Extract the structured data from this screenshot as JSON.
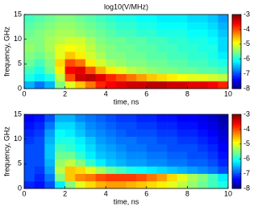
{
  "chart_data": [
    {
      "type": "heatmap",
      "title": "log10(V/MHz)",
      "xlabel": "time, ns",
      "ylabel": "frequency, GHz",
      "xlim": [
        0,
        10
      ],
      "xticks": [
        0,
        2,
        4,
        6,
        8,
        10
      ],
      "ylim": [
        0,
        15
      ],
      "yticks": [
        0,
        5,
        10,
        15
      ],
      "clim": [
        -8,
        -3
      ],
      "cticks": [
        -8,
        -7,
        -6,
        -5,
        -4,
        -3
      ],
      "colormap": "jet",
      "x": [
        0.25,
        0.75,
        1.25,
        1.75,
        2.25,
        2.75,
        3.25,
        3.75,
        4.25,
        4.75,
        5.25,
        5.75,
        6.25,
        6.75,
        7.25,
        7.75,
        8.25,
        8.75,
        9.25,
        9.75
      ],
      "y": [
        0.75,
        2.25,
        3.75,
        5.25,
        6.75,
        8.25,
        9.75,
        11.25,
        12.75,
        14.25
      ],
      "values": [
        [
          -6.5,
          -6.8,
          -6.5,
          -5.5,
          -5,
          -4.6,
          -4.2,
          -3.8,
          -3.6,
          -3.5,
          -3.4,
          -3.4,
          -3.3,
          -3.3,
          -3.4,
          -3.4,
          -3.5,
          -3.5,
          -3.6,
          -3.8
        ],
        [
          -6,
          -6.2,
          -6,
          -5.2,
          -4,
          -3.4,
          -3.3,
          -3.5,
          -3.8,
          -4,
          -4.2,
          -4.4,
          -4.6,
          -4.7,
          -4.8,
          -4.9,
          -5,
          -5,
          -5.1,
          -5.2
        ],
        [
          -5.8,
          -6,
          -5.6,
          -4.8,
          -3.6,
          -3.5,
          -4,
          -4.5,
          -4.8,
          -5,
          -5.2,
          -5.3,
          -5.4,
          -5.5,
          -5.5,
          -5.6,
          -5.6,
          -5.7,
          -5.7,
          -5.8
        ],
        [
          -5.6,
          -5.8,
          -5.5,
          -4.7,
          -4,
          -4.2,
          -4.8,
          -5.1,
          -5.3,
          -5.4,
          -5.5,
          -5.5,
          -5.6,
          -5.6,
          -5.7,
          -5.7,
          -5.8,
          -5.8,
          -5.9,
          -6
        ],
        [
          -5.5,
          -5.6,
          -5.4,
          -5,
          -4.6,
          -4.8,
          -5.1,
          -5.3,
          -5.5,
          -5.5,
          -5.6,
          -5.6,
          -5.7,
          -5.7,
          -5.8,
          -5.8,
          -5.9,
          -5.9,
          -6,
          -6.2
        ],
        [
          -5.4,
          -5.5,
          -5.3,
          -5,
          -4.9,
          -5,
          -5.2,
          -5.4,
          -5.5,
          -5.6,
          -5.6,
          -5.7,
          -5.7,
          -5.8,
          -5.8,
          -5.9,
          -5.9,
          -6,
          -6,
          -6.3
        ],
        [
          -5.5,
          -5.5,
          -5.3,
          -5.2,
          -5.1,
          -5.1,
          -5.3,
          -5.5,
          -5.6,
          -5.6,
          -5.7,
          -5.7,
          -5.8,
          -5.8,
          -5.9,
          -5.9,
          -6,
          -6,
          -6.1,
          -6.3
        ],
        [
          -5.6,
          -5.5,
          -5.4,
          -5.3,
          -5.3,
          -5.4,
          -5.5,
          -5.6,
          -5.7,
          -5.8,
          -5.8,
          -5.9,
          -5.9,
          -6,
          -6,
          -6,
          -6.1,
          -6.1,
          -6.2,
          -6.4
        ],
        [
          -5.7,
          -5.6,
          -5.5,
          -5.4,
          -5.4,
          -5.5,
          -5.6,
          -5.7,
          -5.8,
          -5.9,
          -5.9,
          -6,
          -6,
          -6.1,
          -6.1,
          -6.1,
          -6.2,
          -6.2,
          -6.3,
          -6.5
        ],
        [
          -5.8,
          -5.7,
          -5.6,
          -5.5,
          -5.5,
          -5.6,
          -5.7,
          -5.8,
          -5.9,
          -6,
          -6,
          -6.1,
          -6.1,
          -6.2,
          -6.2,
          -6.2,
          -6.3,
          -6.3,
          -6.4,
          -6.6
        ]
      ]
    },
    {
      "type": "heatmap",
      "xlabel": "time, ns",
      "ylabel": "frequency, GHz",
      "xlim": [
        0,
        10
      ],
      "xticks": [
        0,
        2,
        4,
        6,
        8,
        10
      ],
      "ylim": [
        0,
        15
      ],
      "yticks": [
        0,
        5,
        10,
        15
      ],
      "clim": [
        -8,
        -3
      ],
      "cticks": [
        -8,
        -7,
        -6,
        -5,
        -4,
        -3
      ],
      "colormap": "jet",
      "x": [
        0.25,
        0.75,
        1.25,
        1.75,
        2.25,
        2.75,
        3.25,
        3.75,
        4.25,
        4.75,
        5.25,
        5.75,
        6.25,
        6.75,
        7.25,
        7.75,
        8.25,
        8.75,
        9.25,
        9.75
      ],
      "y": [
        0.75,
        2.25,
        3.75,
        5.25,
        6.75,
        8.25,
        9.75,
        11.25,
        12.75,
        14.25
      ],
      "values": [
        [
          -7.2,
          -7.3,
          -7,
          -6.2,
          -5.5,
          -5,
          -4.7,
          -4.5,
          -4.4,
          -4.4,
          -4.5,
          -4.6,
          -4.7,
          -4.8,
          -5,
          -5.2,
          -5.4,
          -5.6,
          -5.8,
          -6
        ],
        [
          -7,
          -7.2,
          -6.8,
          -5.5,
          -4.6,
          -4.3,
          -4.2,
          -4,
          -3.9,
          -3.9,
          -3.9,
          -4,
          -4.2,
          -4.4,
          -4.7,
          -5,
          -5.3,
          -5.5,
          -5.8,
          -6.2
        ],
        [
          -7,
          -7.1,
          -6.6,
          -5.2,
          -4.6,
          -4.7,
          -5,
          -5.3,
          -5.6,
          -5.8,
          -6,
          -6.1,
          -6.2,
          -6.3,
          -6.4,
          -6.5,
          -6.6,
          -6.7,
          -6.8,
          -7
        ],
        [
          -7,
          -7,
          -6.5,
          -5.4,
          -5.2,
          -5.5,
          -5.9,
          -6.2,
          -6.4,
          -6.5,
          -6.6,
          -6.6,
          -6.7,
          -6.7,
          -6.8,
          -6.8,
          -6.9,
          -6.9,
          -7,
          -7.2
        ],
        [
          -7,
          -7,
          -6.4,
          -5.6,
          -5.6,
          -5.9,
          -6.2,
          -6.4,
          -6.5,
          -6.6,
          -6.7,
          -6.7,
          -6.8,
          -6.8,
          -6.9,
          -6.9,
          -7,
          -7,
          -7.1,
          -7.3
        ],
        [
          -7,
          -7,
          -6.4,
          -5.8,
          -5.9,
          -6.1,
          -6.3,
          -6.5,
          -6.6,
          -6.7,
          -6.8,
          -6.8,
          -6.9,
          -6.9,
          -7,
          -7,
          -7,
          -7.1,
          -7.2,
          -7.4
        ],
        [
          -7.1,
          -7,
          -6.5,
          -6,
          -6,
          -6.2,
          -6.4,
          -6.6,
          -6.7,
          -6.8,
          -6.8,
          -6.9,
          -6.9,
          -7,
          -7,
          -7.1,
          -7.1,
          -7.2,
          -7.3,
          -7.5
        ],
        [
          -7.2,
          -7.1,
          -6.6,
          -6.1,
          -6.2,
          -6.4,
          -6.6,
          -6.7,
          -6.8,
          -6.9,
          -7,
          -7,
          -7,
          -7.1,
          -7.1,
          -7.2,
          -7.2,
          -7.3,
          -7.4,
          -7.6
        ],
        [
          -7.3,
          -7.2,
          -6.8,
          -6.3,
          -6.3,
          -6.5,
          -6.7,
          -6.8,
          -6.9,
          -7,
          -7,
          -7.1,
          -7.1,
          -7.2,
          -7.2,
          -7.3,
          -7.3,
          -7.4,
          -7.5,
          -7.7
        ],
        [
          -7.4,
          -7.3,
          -7,
          -6.5,
          -6.5,
          -6.7,
          -6.8,
          -6.9,
          -7,
          -7.1,
          -7.1,
          -7.2,
          -7.2,
          -7.3,
          -7.3,
          -7.4,
          -7.4,
          -7.5,
          -7.6,
          -7.8
        ]
      ]
    }
  ]
}
